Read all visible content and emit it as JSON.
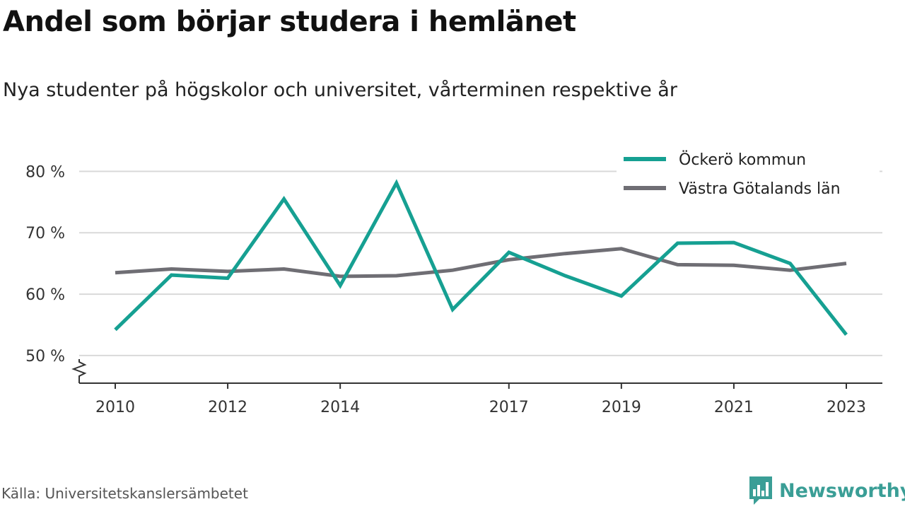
{
  "header": {
    "title": "Andel som börjar studera i hemlänet",
    "subtitle": "Nya studenter på högskolor och universitet, vårterminen respektive år"
  },
  "footer": {
    "source": "Källa: Universitetskanslersämbetet",
    "brand": "Newsworthy",
    "brand_color": "#3a9e96"
  },
  "chart_data": {
    "type": "line",
    "x": [
      2010,
      2011,
      2012,
      2013,
      2014,
      2015,
      2016,
      2017,
      2018,
      2019,
      2020,
      2021,
      2022,
      2023
    ],
    "x_tick_labels": [
      "2010",
      "2012",
      "2014",
      "2017",
      "2019",
      "2021",
      "2023"
    ],
    "y_ticks": [
      {
        "value": 50,
        "label": "50 %"
      },
      {
        "value": 60,
        "label": "60 %"
      },
      {
        "value": 70,
        "label": "70 %"
      },
      {
        "value": 80,
        "label": "80 %"
      }
    ],
    "ylim": [
      45.5,
      82
    ],
    "y_axis_break": true,
    "grid": true,
    "legend_position": "top-right",
    "series": [
      {
        "name": "Öckerö kommun",
        "color": "#16a092",
        "values": [
          54.2,
          63.1,
          62.6,
          75.5,
          61.4,
          78.1,
          57.5,
          66.8,
          63.0,
          59.7,
          68.3,
          68.4,
          65.0,
          53.4
        ]
      },
      {
        "name": "Västra Götalands län",
        "color": "#6f6e74",
        "values": [
          63.5,
          64.1,
          63.7,
          64.1,
          62.9,
          63.0,
          63.9,
          65.6,
          66.6,
          67.4,
          64.8,
          64.7,
          63.9,
          65.0
        ]
      }
    ]
  }
}
